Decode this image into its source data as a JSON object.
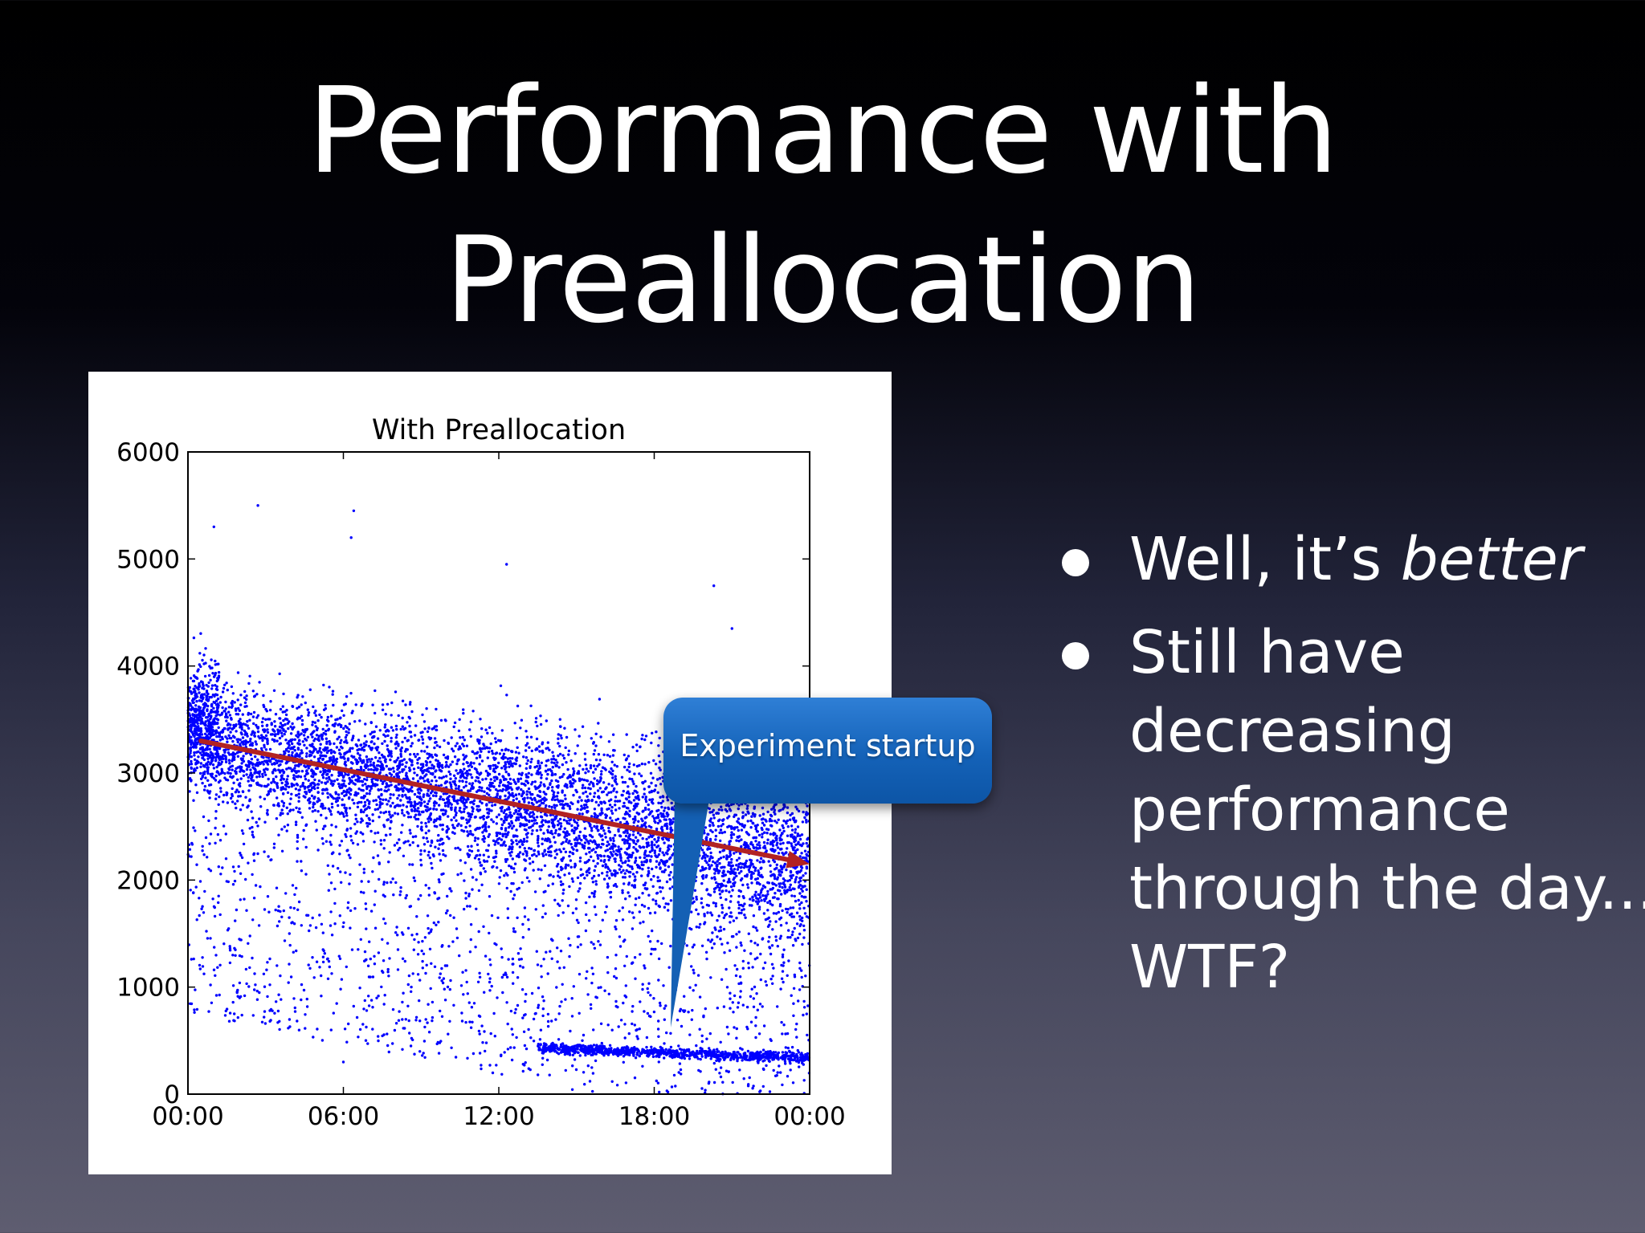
{
  "slide": {
    "title_line1": "Performance with",
    "title_line2": "Preallocation"
  },
  "callout": {
    "text": "Experiment startup",
    "color": "#1565c0"
  },
  "bullets": [
    {
      "parts": [
        {
          "text": "Well, it’s "
        },
        {
          "text": "better",
          "italic": true
        }
      ]
    },
    {
      "parts": [
        {
          "text": "Still have decreasing performance through the day... WTF?"
        }
      ],
      "lines": [
        "Still have",
        "decreasing",
        "performance",
        "through the day...",
        "WTF?"
      ]
    }
  ],
  "chart_data": {
    "type": "scatter",
    "title": "With Preallocation",
    "xlabel": "",
    "ylabel": "",
    "x_ticks": [
      "00:00",
      "06:00",
      "12:00",
      "18:00",
      "00:00"
    ],
    "x_range_hours": [
      0,
      24
    ],
    "y_ticks": [
      0,
      1000,
      2000,
      3000,
      4000,
      5000,
      6000
    ],
    "ylim": [
      0,
      6000
    ],
    "grid": false,
    "point_color": "#0000ff",
    "sample_points": [
      {
        "x": 0.5,
        "y": 3400
      },
      {
        "x": 1.0,
        "y": 5300
      },
      {
        "x": 2.7,
        "y": 5500
      },
      {
        "x": 6.4,
        "y": 5450
      },
      {
        "x": 6.3,
        "y": 5200
      },
      {
        "x": 12.3,
        "y": 4950
      },
      {
        "x": 20.3,
        "y": 4750
      },
      {
        "x": 21.0,
        "y": 4350
      },
      {
        "x": 3.0,
        "y": 3500
      },
      {
        "x": 9.0,
        "y": 2900
      },
      {
        "x": 15.0,
        "y": 2600
      },
      {
        "x": 21.5,
        "y": 2300
      },
      {
        "x": 4.0,
        "y": 1600
      },
      {
        "x": 10.0,
        "y": 1200
      },
      {
        "x": 16.0,
        "y": 450
      },
      {
        "x": 20.0,
        "y": 400
      },
      {
        "x": 23.5,
        "y": 350
      },
      {
        "x": 6.0,
        "y": 300
      }
    ],
    "trend_line": {
      "color": "#b22222",
      "from": {
        "x": 0.5,
        "y": 3300
      },
      "to": {
        "x": 24.0,
        "y": 2150
      }
    }
  }
}
